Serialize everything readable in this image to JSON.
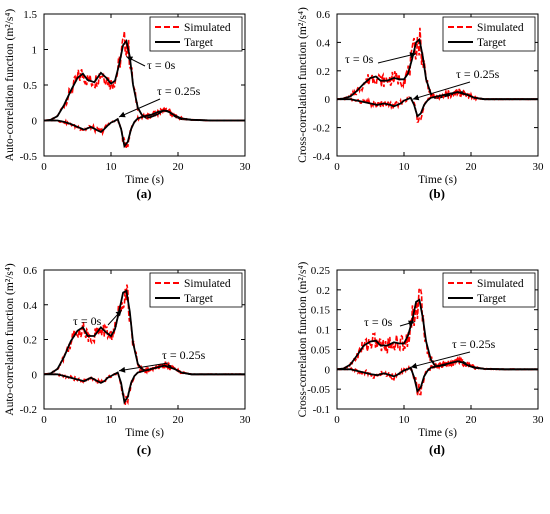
{
  "colors": {
    "simulated": "#ff0000",
    "target": "#000000"
  },
  "chart_data": [
    {
      "type": "line",
      "panel_label": "(a)",
      "xlabel": "Time (s)",
      "ylabel": "Auto-correlation function (m²/s⁴)",
      "xlim": [
        0,
        30
      ],
      "ylim": [
        -0.5,
        1.5
      ],
      "xticks": [
        0,
        10,
        20,
        30
      ],
      "yticks": [
        -0.5,
        0,
        0.5,
        1,
        1.5
      ],
      "yticklabels": [
        "-0.5",
        "0",
        "0.5",
        "1",
        "1.5"
      ],
      "legend": {
        "position": "top-right",
        "entries": [
          "Simulated",
          "Target"
        ]
      },
      "annotations": [
        {
          "text": "τ = 0s",
          "points_to": [
            12.3,
            0.9
          ]
        },
        {
          "text": "τ = 0.25s",
          "points_to": [
            11.2,
            0.05
          ]
        }
      ],
      "series": [
        {
          "name": "Target",
          "label": "τ = 0s",
          "x": [
            0,
            1,
            2,
            3,
            4,
            5,
            5.8,
            6.5,
            7.5,
            8.5,
            9.3,
            10,
            10.6,
            11.2,
            11.8,
            12.3,
            12.8,
            13.3,
            14,
            14.6,
            15.2,
            16,
            17,
            18,
            18.7,
            19.5,
            20.5,
            22,
            25,
            30
          ],
          "y": [
            0,
            0.01,
            0.06,
            0.22,
            0.42,
            0.6,
            0.66,
            0.57,
            0.54,
            0.67,
            0.6,
            0.52,
            0.56,
            0.78,
            1.06,
            1.12,
            0.9,
            0.5,
            0.18,
            0.08,
            0.04,
            0.05,
            0.09,
            0.15,
            0.12,
            0.06,
            0.02,
            0.01,
            0,
            0
          ]
        },
        {
          "name": "Target",
          "label": "τ = 0.25s",
          "x": [
            0,
            2,
            3,
            4,
            5,
            6,
            7,
            8,
            8.5,
            9,
            9.5,
            10,
            10.5,
            11,
            11.5,
            12,
            12.5,
            13,
            13.5,
            14,
            15,
            16,
            17,
            18,
            18.7,
            19.5,
            20.5,
            22,
            25,
            30
          ],
          "y": [
            0,
            0,
            -0.02,
            -0.05,
            -0.09,
            -0.13,
            -0.09,
            -0.14,
            -0.16,
            -0.12,
            -0.07,
            -0.03,
            -0.01,
            0.02,
            -0.12,
            -0.36,
            -0.3,
            -0.12,
            -0.02,
            0.03,
            0.06,
            0.08,
            0.12,
            0.14,
            0.12,
            0.07,
            0.03,
            0.01,
            0,
            0
          ]
        }
      ]
    },
    {
      "type": "line",
      "panel_label": "(b)",
      "xlabel": "Time (s)",
      "ylabel": "Cross-correlation function (m²/s⁴)",
      "xlim": [
        0,
        30
      ],
      "ylim": [
        -0.4,
        0.6
      ],
      "xticks": [
        0,
        10,
        20,
        30
      ],
      "yticks": [
        -0.4,
        -0.2,
        0,
        0.2,
        0.4,
        0.6
      ],
      "yticklabels": [
        "-0.4",
        "-0.2",
        "0",
        "0.2",
        "0.4",
        "0.6"
      ],
      "legend": {
        "position": "top-right",
        "entries": [
          "Simulated",
          "Target"
        ]
      },
      "annotations": [
        {
          "text": "τ = 0s",
          "points_to": [
            11.8,
            0.32
          ]
        },
        {
          "text": "τ = 0.25s",
          "points_to": [
            11.3,
            0.0
          ]
        }
      ],
      "series": [
        {
          "name": "Target",
          "label": "τ = 0s",
          "x": [
            0,
            1,
            2,
            3,
            4,
            5,
            5.8,
            6.5,
            7.5,
            8.5,
            9.3,
            10,
            10.6,
            11.2,
            11.8,
            12.3,
            12.8,
            13.3,
            14,
            14.6,
            15.2,
            16,
            17,
            18,
            18.7,
            19.5,
            20.5,
            22,
            25,
            30
          ],
          "y": [
            0,
            0.005,
            0.02,
            0.06,
            0.11,
            0.15,
            0.16,
            0.13,
            0.13,
            0.15,
            0.14,
            0.14,
            0.18,
            0.28,
            0.4,
            0.42,
            0.3,
            0.14,
            0.04,
            0.01,
            0.01,
            0.02,
            0.03,
            0.05,
            0.05,
            0.03,
            0.01,
            0,
            0,
            0
          ]
        },
        {
          "name": "Target",
          "label": "τ = 0.25s",
          "x": [
            0,
            2,
            3,
            4,
            5,
            6,
            7,
            8,
            8.5,
            9,
            9.5,
            10,
            10.5,
            11,
            11.5,
            12,
            12.5,
            13,
            13.5,
            14,
            15,
            16,
            17,
            18,
            18.7,
            19.5,
            20.5,
            22,
            25,
            30
          ],
          "y": [
            0,
            0,
            -0.01,
            -0.02,
            -0.03,
            -0.04,
            -0.03,
            -0.04,
            -0.05,
            -0.04,
            -0.03,
            -0.01,
            0.0,
            0.01,
            -0.04,
            -0.12,
            -0.1,
            -0.04,
            -0.01,
            0.01,
            0.02,
            0.03,
            0.04,
            0.05,
            0.04,
            0.03,
            0.01,
            0,
            0,
            0
          ]
        }
      ]
    },
    {
      "type": "line",
      "panel_label": "(c)",
      "xlabel": "Time (s)",
      "ylabel": "Auto-correlation function (m²/s⁴)",
      "xlim": [
        0,
        30
      ],
      "ylim": [
        -0.2,
        0.6
      ],
      "xticks": [
        0,
        10,
        20,
        30
      ],
      "yticks": [
        -0.2,
        0,
        0.2,
        0.4,
        0.6
      ],
      "yticklabels": [
        "-0.2",
        "0",
        "0.2",
        "0.4",
        "0.6"
      ],
      "legend": {
        "position": "top-right",
        "entries": [
          "Simulated",
          "Target"
        ]
      },
      "annotations": [
        {
          "text": "τ = 0s",
          "points_to": [
            11.6,
            0.37
          ]
        },
        {
          "text": "τ = 0.25s",
          "points_to": [
            11.2,
            0.02
          ]
        }
      ],
      "series": [
        {
          "name": "Target",
          "label": "τ = 0s",
          "x": [
            0,
            1,
            2,
            3,
            4,
            5,
            5.8,
            6.5,
            7.5,
            8.5,
            9.3,
            10,
            10.6,
            11.2,
            11.8,
            12.3,
            12.8,
            13.3,
            14,
            14.6,
            15.2,
            16,
            17,
            18,
            18.7,
            19.5,
            20.5,
            22,
            25,
            30
          ],
          "y": [
            0,
            0.005,
            0.03,
            0.1,
            0.19,
            0.25,
            0.27,
            0.22,
            0.22,
            0.27,
            0.24,
            0.22,
            0.26,
            0.36,
            0.47,
            0.48,
            0.36,
            0.18,
            0.06,
            0.03,
            0.02,
            0.03,
            0.04,
            0.06,
            0.05,
            0.03,
            0.01,
            0,
            0,
            0
          ]
        },
        {
          "name": "Target",
          "label": "τ = 0.25s",
          "x": [
            0,
            2,
            3,
            4,
            5,
            6,
            7,
            8,
            8.5,
            9,
            9.5,
            10,
            10.5,
            11,
            11.5,
            12,
            12.5,
            13,
            13.5,
            14,
            15,
            16,
            17,
            18,
            18.7,
            19.5,
            20.5,
            22,
            25,
            30
          ],
          "y": [
            0,
            0,
            -0.01,
            -0.02,
            -0.03,
            -0.04,
            -0.02,
            -0.04,
            -0.05,
            -0.04,
            -0.02,
            -0.01,
            0.0,
            0.01,
            -0.05,
            -0.16,
            -0.13,
            -0.05,
            -0.01,
            0.01,
            0.02,
            0.03,
            0.04,
            0.05,
            0.04,
            0.03,
            0.01,
            0,
            0,
            0
          ]
        }
      ]
    },
    {
      "type": "line",
      "panel_label": "(d)",
      "xlabel": "Time (s)",
      "ylabel": "Cross-correlation function (m²/s⁴)",
      "xlim": [
        0,
        30
      ],
      "ylim": [
        -0.1,
        0.25
      ],
      "xticks": [
        0,
        10,
        20,
        30
      ],
      "yticks": [
        -0.1,
        -0.05,
        0,
        0.05,
        0.1,
        0.15,
        0.2,
        0.25
      ],
      "yticklabels": [
        "-0.1",
        "-0.05",
        "0",
        "0.05",
        "0.1",
        "0.15",
        "0.2",
        "0.25"
      ],
      "legend": {
        "position": "top-right",
        "entries": [
          "Simulated",
          "Target"
        ]
      },
      "annotations": [
        {
          "text": "τ = 0s",
          "points_to": [
            11.6,
            0.12
          ]
        },
        {
          "text": "τ = 0.25s",
          "points_to": [
            11.0,
            0.005
          ]
        }
      ],
      "series": [
        {
          "name": "Target",
          "label": "τ = 0s",
          "x": [
            0,
            1,
            2,
            3,
            4,
            5,
            5.8,
            6.5,
            7.5,
            8.5,
            9.3,
            10,
            10.6,
            11.2,
            11.8,
            12.3,
            12.8,
            13.3,
            14,
            14.6,
            15.2,
            16,
            17,
            18,
            18.7,
            19.5,
            20.5,
            22,
            25,
            30
          ],
          "y": [
            0,
            0.002,
            0.012,
            0.035,
            0.06,
            0.07,
            0.072,
            0.06,
            0.06,
            0.068,
            0.065,
            0.065,
            0.085,
            0.12,
            0.17,
            0.175,
            0.13,
            0.07,
            0.025,
            0.01,
            0.008,
            0.01,
            0.015,
            0.022,
            0.02,
            0.012,
            0.005,
            0.001,
            0,
            0
          ]
        },
        {
          "name": "Target",
          "label": "τ = 0.25s",
          "x": [
            0,
            2,
            3,
            4,
            5,
            6,
            7,
            8,
            8.5,
            9,
            9.5,
            10,
            10.5,
            11,
            11.5,
            12,
            12.5,
            13,
            13.5,
            14,
            15,
            16,
            17,
            18,
            18.7,
            19.5,
            20.5,
            22,
            25,
            30
          ],
          "y": [
            0,
            0,
            -0.004,
            -0.008,
            -0.012,
            -0.015,
            -0.01,
            -0.015,
            -0.018,
            -0.014,
            -0.008,
            -0.003,
            0.0,
            0.004,
            -0.02,
            -0.055,
            -0.045,
            -0.018,
            -0.004,
            0.004,
            0.008,
            0.012,
            0.016,
            0.02,
            0.017,
            0.01,
            0.004,
            0.001,
            0,
            0
          ]
        }
      ]
    }
  ]
}
